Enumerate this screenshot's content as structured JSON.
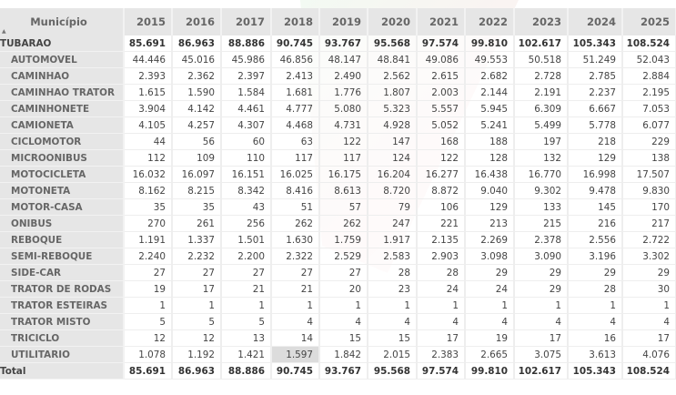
{
  "header": {
    "municipio": "Município",
    "years": [
      "2015",
      "2016",
      "2017",
      "2018",
      "2019",
      "2020",
      "2021",
      "2022",
      "2023",
      "2024",
      "2025"
    ]
  },
  "rows": [
    {
      "label": "TUBARAO",
      "values": [
        "85.691",
        "86.963",
        "88.886",
        "90.745",
        "93.767",
        "95.568",
        "97.574",
        "99.810",
        "102.617",
        "105.343",
        "108.524"
      ]
    },
    {
      "label": "AUTOMOVEL",
      "values": [
        "44.446",
        "45.016",
        "45.986",
        "46.856",
        "48.147",
        "48.841",
        "49.086",
        "49.553",
        "50.518",
        "51.249",
        "52.043"
      ]
    },
    {
      "label": "CAMINHAO",
      "values": [
        "2.393",
        "2.362",
        "2.397",
        "2.413",
        "2.490",
        "2.562",
        "2.615",
        "2.682",
        "2.728",
        "2.785",
        "2.884"
      ]
    },
    {
      "label": "CAMINHAO TRATOR",
      "values": [
        "1.615",
        "1.590",
        "1.584",
        "1.681",
        "1.776",
        "1.807",
        "2.003",
        "2.144",
        "2.191",
        "2.237",
        "2.195"
      ]
    },
    {
      "label": "CAMINHONETE",
      "values": [
        "3.904",
        "4.142",
        "4.461",
        "4.777",
        "5.080",
        "5.323",
        "5.557",
        "5.945",
        "6.309",
        "6.667",
        "7.053"
      ]
    },
    {
      "label": "CAMIONETA",
      "values": [
        "4.105",
        "4.257",
        "4.307",
        "4.468",
        "4.731",
        "4.928",
        "5.052",
        "5.241",
        "5.499",
        "5.778",
        "6.077"
      ]
    },
    {
      "label": "CICLOMOTOR",
      "values": [
        "44",
        "56",
        "60",
        "63",
        "122",
        "147",
        "168",
        "188",
        "197",
        "218",
        "229"
      ]
    },
    {
      "label": "MICROONIBUS",
      "values": [
        "112",
        "109",
        "110",
        "117",
        "117",
        "124",
        "122",
        "128",
        "132",
        "129",
        "138"
      ]
    },
    {
      "label": "MOTOCICLETA",
      "values": [
        "16.032",
        "16.097",
        "16.151",
        "16.025",
        "16.175",
        "16.204",
        "16.277",
        "16.438",
        "16.770",
        "16.998",
        "17.507"
      ]
    },
    {
      "label": "MOTONETA",
      "values": [
        "8.162",
        "8.215",
        "8.342",
        "8.416",
        "8.613",
        "8.720",
        "8.872",
        "9.040",
        "9.302",
        "9.478",
        "9.830"
      ]
    },
    {
      "label": "MOTOR-CASA",
      "values": [
        "35",
        "35",
        "43",
        "51",
        "57",
        "79",
        "106",
        "129",
        "133",
        "145",
        "170"
      ]
    },
    {
      "label": "ONIBUS",
      "values": [
        "270",
        "261",
        "256",
        "262",
        "262",
        "247",
        "221",
        "213",
        "215",
        "216",
        "217"
      ]
    },
    {
      "label": "REBOQUE",
      "values": [
        "1.191",
        "1.337",
        "1.501",
        "1.630",
        "1.759",
        "1.917",
        "2.135",
        "2.269",
        "2.378",
        "2.556",
        "2.722"
      ]
    },
    {
      "label": "SEMI-REBOQUE",
      "values": [
        "2.240",
        "2.232",
        "2.200",
        "2.322",
        "2.529",
        "2.583",
        "2.903",
        "3.098",
        "3.090",
        "3.196",
        "3.302"
      ]
    },
    {
      "label": "SIDE-CAR",
      "values": [
        "27",
        "27",
        "27",
        "27",
        "27",
        "28",
        "28",
        "29",
        "29",
        "29",
        "29"
      ]
    },
    {
      "label": "TRATOR DE RODAS",
      "values": [
        "19",
        "17",
        "21",
        "21",
        "20",
        "23",
        "24",
        "24",
        "29",
        "28",
        "30"
      ]
    },
    {
      "label": "TRATOR ESTEIRAS",
      "values": [
        "1",
        "1",
        "1",
        "1",
        "1",
        "1",
        "1",
        "1",
        "1",
        "1",
        "1"
      ]
    },
    {
      "label": "TRATOR MISTO",
      "values": [
        "5",
        "5",
        "5",
        "4",
        "4",
        "4",
        "4",
        "4",
        "4",
        "4",
        "4"
      ]
    },
    {
      "label": "TRICICLO",
      "values": [
        "12",
        "12",
        "13",
        "14",
        "15",
        "15",
        "17",
        "19",
        "17",
        "16",
        "17"
      ]
    },
    {
      "label": "UTILITARIO",
      "values": [
        "1.078",
        "1.192",
        "1.421",
        "1.597",
        "1.842",
        "2.015",
        "2.383",
        "2.665",
        "3.075",
        "3.613",
        "4.076"
      ]
    },
    {
      "label": "Total",
      "values": [
        "85.691",
        "86.963",
        "88.886",
        "90.745",
        "93.767",
        "95.568",
        "97.574",
        "99.810",
        "102.617",
        "105.343",
        "108.524"
      ]
    }
  ]
}
